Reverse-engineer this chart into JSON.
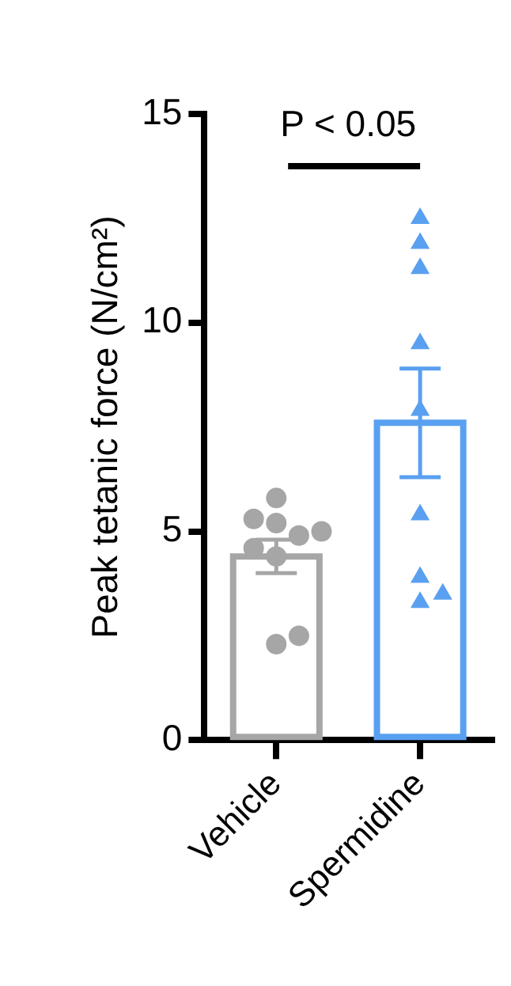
{
  "chart_data": {
    "type": "bar",
    "ylabel": "Peak tetanic force (N/cm²)",
    "categories": [
      "Vehicle",
      "Spermidine"
    ],
    "series": [
      {
        "values": [
          4.4,
          7.6
        ],
        "colors": [
          "#a6a6a6",
          "#5aa0f0"
        ],
        "errors": [
          0.4,
          1.3
        ]
      },
      {
        "type": "scatter",
        "x": [
          "Vehicle",
          "Vehicle",
          "Vehicle",
          "Vehicle",
          "Vehicle",
          "Vehicle",
          "Vehicle",
          "Vehicle",
          "Vehicle"
        ],
        "values": [
          5.8,
          5.2,
          4.9,
          5.3,
          5.0,
          4.4,
          4.6,
          2.3,
          2.5
        ],
        "color": "#a6a6a6",
        "marker": "circle"
      },
      {
        "type": "scatter",
        "x": [
          "Spermidine",
          "Spermidine",
          "Spermidine",
          "Spermidine",
          "Spermidine",
          "Spermidine",
          "Spermidine",
          "Spermidine",
          "Spermidine"
        ],
        "values": [
          12.5,
          11.9,
          11.3,
          9.5,
          7.9,
          5.4,
          3.9,
          3.3,
          3.5
        ],
        "color": "#5aa0f0",
        "marker": "triangle"
      }
    ],
    "ylim": [
      0,
      15
    ],
    "yticks": [
      0,
      5,
      10,
      15
    ],
    "grid": false,
    "legend": false,
    "annotations": [
      "P < 0.05"
    ]
  }
}
